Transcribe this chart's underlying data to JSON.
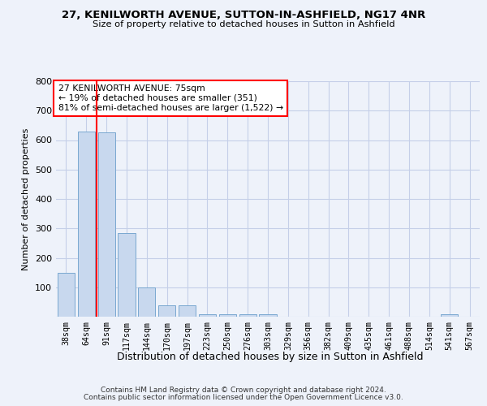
{
  "title": "27, KENILWORTH AVENUE, SUTTON-IN-ASHFIELD, NG17 4NR",
  "subtitle": "Size of property relative to detached houses in Sutton in Ashfield",
  "xlabel": "Distribution of detached houses by size in Sutton in Ashfield",
  "ylabel": "Number of detached properties",
  "categories": [
    "38sqm",
    "64sqm",
    "91sqm",
    "117sqm",
    "144sqm",
    "170sqm",
    "197sqm",
    "223sqm",
    "250sqm",
    "276sqm",
    "303sqm",
    "329sqm",
    "356sqm",
    "382sqm",
    "409sqm",
    "435sqm",
    "461sqm",
    "488sqm",
    "514sqm",
    "541sqm",
    "567sqm"
  ],
  "values": [
    150,
    630,
    625,
    285,
    100,
    40,
    40,
    8,
    8,
    8,
    8,
    0,
    0,
    0,
    0,
    0,
    0,
    0,
    0,
    8,
    0
  ],
  "bar_color": "#c8d8ee",
  "bar_edge_color": "#7aa8d0",
  "vline_x": 1.5,
  "vline_color": "red",
  "annotation_text": "27 KENILWORTH AVENUE: 75sqm\n← 19% of detached houses are smaller (351)\n81% of semi-detached houses are larger (1,522) →",
  "annotation_box_color": "white",
  "annotation_box_edge": "red",
  "ylim": [
    0,
    800
  ],
  "yticks": [
    0,
    100,
    200,
    300,
    400,
    500,
    600,
    700,
    800
  ],
  "footer1": "Contains HM Land Registry data © Crown copyright and database right 2024.",
  "footer2": "Contains public sector information licensed under the Open Government Licence v3.0.",
  "bg_color": "#eef2fa",
  "grid_color": "#c5cfe8"
}
